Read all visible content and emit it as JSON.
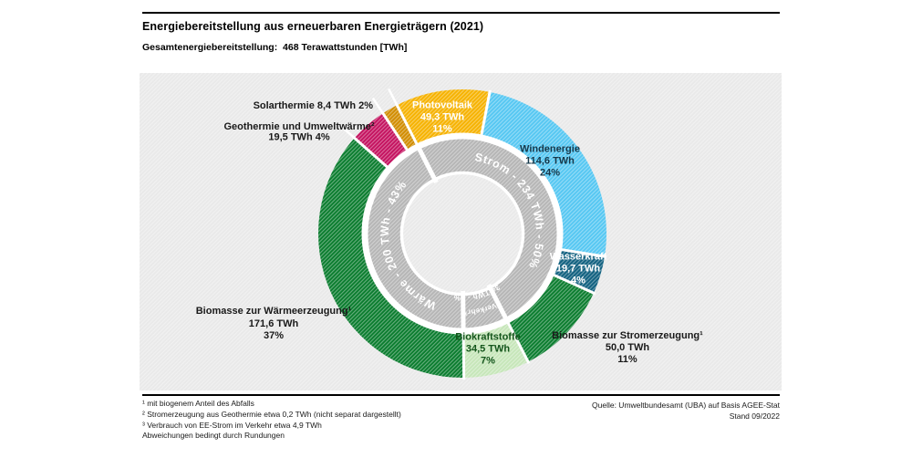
{
  "header": {
    "title": "Energiebereitstellung aus erneuerbaren Energieträgern (2021)",
    "subtitle": "Gesamtenergiebereitstellung:  468 Terawattstunden [TWh]"
  },
  "chart_data": {
    "type": "donut",
    "title": "Energiebereitstellung aus erneuerbaren Energieträgern (2021)",
    "total_twh": 468,
    "total_label": "468 Terawattstunden [TWh]",
    "colors": {
      "inner_ring": "#b5b5b5",
      "ring_text": "#ffffff",
      "chart_bg": "#e9e9e9",
      "outside_label_text": "#1a1a1a"
    },
    "segments": [
      {
        "id": "photovoltaik",
        "label": "Photovoltaik",
        "value": 49.3,
        "value_label": "49,3 TWh",
        "pct": 11,
        "pct_label": "11%",
        "color": "#f6b200",
        "label_color": "#ffffff",
        "placement": "inside"
      },
      {
        "id": "windenergie",
        "label": "Windenergie",
        "value": 114.6,
        "value_label": "114,6 TWh",
        "pct": 24,
        "pct_label": "24%",
        "color": "#55c7f2",
        "label_color": "#16384a",
        "placement": "inside"
      },
      {
        "id": "wasserkraft",
        "label": "Wasserkraft",
        "value": 19.7,
        "value_label": "19,7 TWh",
        "pct": 4,
        "pct_label": "4%",
        "color": "#10607f",
        "label_color": "#ffffff",
        "placement": "inside"
      },
      {
        "id": "biomasse-stromerzeugung",
        "label": "Biomasse zur Stromerzeugung¹",
        "value": 50.0,
        "value_label": "50,0 TWh",
        "pct": 11,
        "pct_label": "11%",
        "color": "#0a7c2e",
        "label_color": "#1a1a1a",
        "placement": "outside"
      },
      {
        "id": "biokraftstoffe",
        "label": "Biokraftstoffe",
        "value": 34.5,
        "value_label": "34,5 TWh",
        "pct": 7,
        "pct_label": "7%",
        "color": "#c6e6b9",
        "label_color": "#14551c",
        "placement": "inside"
      },
      {
        "id": "biomasse-waermeerzeugung",
        "label": "Biomasse zur Wärmeerzeugung¹",
        "value": 171.6,
        "value_label": "171,6 TWh",
        "pct": 37,
        "pct_label": "37%",
        "color": "#0a7c2e",
        "label_color": "#1a1a1a",
        "placement": "outside"
      },
      {
        "id": "geothermie",
        "label": "Geothermie und Umweltwärme²",
        "value": 19.5,
        "value_label": "19,5 TWh",
        "pct": 4,
        "pct_label": "4%",
        "color": "#c4125f",
        "label_color": "#1a1a1a",
        "placement": "outside"
      },
      {
        "id": "solarthermie",
        "label": "Solarthermie",
        "value": 8.4,
        "value_label": "8,4 TWh",
        "pct": 2,
        "pct_label": "2%",
        "color": "#d18c00",
        "label_color": "#1a1a1a",
        "placement": "outside"
      }
    ],
    "inner_segments": [
      {
        "id": "strom",
        "label": "Strom - 234 TWh - 50%",
        "value": 233.6
      },
      {
        "id": "verkehr",
        "lines": [
          "Verkehr³",
          "34 TWh - 7%"
        ],
        "value": 34.5
      },
      {
        "id": "waerme",
        "label": "Wärme - 200 TWh - 43%",
        "value": 199.5
      }
    ]
  },
  "footnotes": [
    "¹ mit biogenem Anteil des Abfalls",
    "² Stromerzeugung aus Geothermie etwa 0,2 TWh (nicht separat dargestellt)",
    "³ Verbrauch von EE-Strom im Verkehr etwa 4,9 TWh",
    "Abweichungen bedingt durch Rundungen"
  ],
  "source": {
    "line1": "Quelle:  Umweltbundesamt (UBA) auf Basis AGEE-Stat",
    "line2": "Stand 09/2022"
  }
}
